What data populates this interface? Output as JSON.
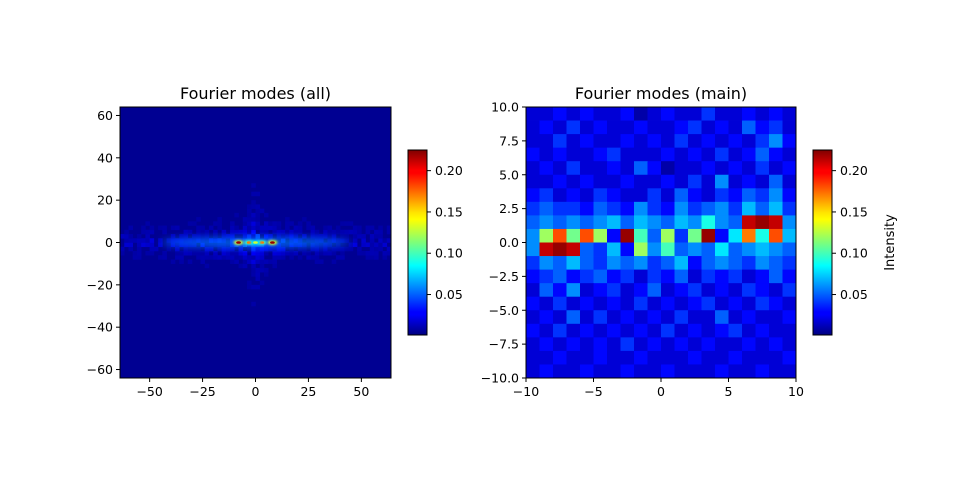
{
  "chart_data": [
    {
      "type": "heatmap",
      "title": "Fourier modes (all)",
      "xlabel": "",
      "ylabel": "",
      "xlim": [
        -64,
        64
      ],
      "ylim": [
        -64,
        64
      ],
      "xticks": [
        -50,
        -25,
        0,
        25,
        50
      ],
      "xtick_labels": [
        "−50",
        "−25",
        "0",
        "25",
        "50"
      ],
      "yticks": [
        -60,
        -40,
        -20,
        0,
        20,
        40,
        60
      ],
      "ytick_labels": [
        "−60",
        "−40",
        "−20",
        "0",
        "20",
        "40",
        "60"
      ],
      "colormap": "jet",
      "background_value": 0.005,
      "peaks": [
        {
          "x": -8,
          "y": 0,
          "value": 0.22
        },
        {
          "x": 8,
          "y": 0,
          "value": 0.22
        },
        {
          "x": -3,
          "y": 0,
          "value": 0.17
        },
        {
          "x": 3,
          "y": 0,
          "value": 0.17
        },
        {
          "x": 0,
          "y": 0,
          "value": 0.13
        }
      ],
      "colorbar": {
        "range": [
          0.001,
          0.225
        ],
        "ticks": [
          0.05,
          0.1,
          0.15,
          0.2
        ],
        "tick_labels": [
          "0.05",
          "0.10",
          "0.15",
          "0.20"
        ],
        "label": ""
      }
    },
    {
      "type": "heatmap",
      "title": "Fourier modes (main)",
      "xlabel": "",
      "ylabel": "",
      "xlim": [
        -10,
        10
      ],
      "ylim": [
        -10,
        10
      ],
      "xticks": [
        -10,
        -5,
        0,
        5,
        10
      ],
      "xtick_labels": [
        "−10",
        "−5",
        "0",
        "5",
        "10"
      ],
      "yticks": [
        -10,
        -7.5,
        -5,
        -2.5,
        0,
        2.5,
        5,
        7.5,
        10
      ],
      "ytick_labels": [
        "−10.0",
        "−7.5",
        "−5.0",
        "−2.5",
        "0.0",
        "2.5",
        "5.0",
        "7.5",
        "10.0"
      ],
      "colormap": "jet",
      "x_bins": [
        -10,
        -9,
        -8,
        -7,
        -6,
        -5,
        -4,
        -3,
        -2,
        -1,
        0,
        1,
        2,
        3,
        4,
        5,
        6,
        7,
        8,
        9
      ],
      "y_bins_top_to_bottom": [
        9,
        8,
        7,
        6,
        5,
        4,
        3,
        2,
        1,
        0,
        -1,
        -2,
        -3,
        -4,
        -5,
        -6,
        -7,
        -8,
        -9,
        -10
      ],
      "values": [
        [
          0.02,
          0.02,
          0.03,
          0.02,
          0.03,
          0.02,
          0.02,
          0.03,
          0.01,
          0.02,
          0.03,
          0.02,
          0.02,
          0.04,
          0.02,
          0.02,
          0.03,
          0.02,
          0.03,
          0.02
        ],
        [
          0.02,
          0.03,
          0.02,
          0.04,
          0.02,
          0.03,
          0.02,
          0.02,
          0.03,
          0.02,
          0.02,
          0.03,
          0.04,
          0.02,
          0.03,
          0.02,
          0.05,
          0.03,
          0.04,
          0.02
        ],
        [
          0.02,
          0.02,
          0.04,
          0.02,
          0.03,
          0.02,
          0.02,
          0.03,
          0.02,
          0.03,
          0.02,
          0.04,
          0.02,
          0.03,
          0.02,
          0.03,
          0.02,
          0.04,
          0.06,
          0.03
        ],
        [
          0.03,
          0.02,
          0.03,
          0.02,
          0.02,
          0.03,
          0.04,
          0.02,
          0.02,
          0.02,
          0.03,
          0.02,
          0.03,
          0.02,
          0.04,
          0.02,
          0.03,
          0.05,
          0.03,
          0.02
        ],
        [
          0.02,
          0.03,
          0.02,
          0.04,
          0.02,
          0.02,
          0.03,
          0.02,
          0.05,
          0.03,
          0.01,
          0.02,
          0.02,
          0.03,
          0.02,
          0.03,
          0.02,
          0.04,
          0.02,
          0.03
        ],
        [
          0.02,
          0.02,
          0.03,
          0.02,
          0.03,
          0.02,
          0.02,
          0.03,
          0.02,
          0.02,
          0.03,
          0.02,
          0.04,
          0.02,
          0.06,
          0.02,
          0.03,
          0.02,
          0.05,
          0.02
        ],
        [
          0.03,
          0.04,
          0.02,
          0.03,
          0.02,
          0.04,
          0.03,
          0.02,
          0.02,
          0.04,
          0.02,
          0.05,
          0.03,
          0.02,
          0.04,
          0.03,
          0.05,
          0.04,
          0.06,
          0.03
        ],
        [
          0.04,
          0.05,
          0.04,
          0.04,
          0.03,
          0.05,
          0.04,
          0.03,
          0.06,
          0.04,
          0.03,
          0.06,
          0.04,
          0.05,
          0.06,
          0.04,
          0.07,
          0.05,
          0.07,
          0.04
        ],
        [
          0.05,
          0.06,
          0.05,
          0.06,
          0.05,
          0.06,
          0.07,
          0.05,
          0.07,
          0.06,
          0.05,
          0.07,
          0.06,
          0.09,
          0.06,
          0.05,
          0.21,
          0.22,
          0.21,
          0.06
        ],
        [
          0.06,
          0.12,
          0.18,
          0.11,
          0.18,
          0.12,
          0.03,
          0.22,
          0.1,
          0.05,
          0.12,
          0.04,
          0.11,
          0.22,
          0.03,
          0.08,
          0.17,
          0.09,
          0.18,
          0.07
        ],
        [
          0.06,
          0.21,
          0.22,
          0.21,
          0.05,
          0.04,
          0.07,
          0.03,
          0.12,
          0.06,
          0.1,
          0.05,
          0.06,
          0.05,
          0.08,
          0.05,
          0.06,
          0.07,
          0.06,
          0.05
        ],
        [
          0.04,
          0.06,
          0.05,
          0.07,
          0.05,
          0.04,
          0.06,
          0.05,
          0.06,
          0.04,
          0.05,
          0.07,
          0.03,
          0.05,
          0.06,
          0.05,
          0.04,
          0.06,
          0.05,
          0.04
        ],
        [
          0.03,
          0.04,
          0.05,
          0.03,
          0.04,
          0.05,
          0.03,
          0.04,
          0.02,
          0.04,
          0.03,
          0.05,
          0.02,
          0.04,
          0.03,
          0.04,
          0.02,
          0.03,
          0.05,
          0.03
        ],
        [
          0.02,
          0.05,
          0.03,
          0.06,
          0.02,
          0.03,
          0.04,
          0.02,
          0.03,
          0.05,
          0.02,
          0.03,
          0.04,
          0.02,
          0.03,
          0.02,
          0.04,
          0.03,
          0.02,
          0.04
        ],
        [
          0.03,
          0.02,
          0.04,
          0.02,
          0.03,
          0.02,
          0.03,
          0.02,
          0.04,
          0.02,
          0.03,
          0.02,
          0.03,
          0.04,
          0.02,
          0.03,
          0.02,
          0.04,
          0.03,
          0.02
        ],
        [
          0.02,
          0.03,
          0.02,
          0.05,
          0.02,
          0.04,
          0.02,
          0.03,
          0.02,
          0.03,
          0.02,
          0.04,
          0.02,
          0.02,
          0.05,
          0.02,
          0.03,
          0.02,
          0.02,
          0.03
        ],
        [
          0.03,
          0.02,
          0.04,
          0.02,
          0.03,
          0.02,
          0.03,
          0.02,
          0.03,
          0.02,
          0.04,
          0.02,
          0.03,
          0.02,
          0.03,
          0.04,
          0.02,
          0.03,
          0.02,
          0.02
        ],
        [
          0.02,
          0.03,
          0.02,
          0.03,
          0.02,
          0.03,
          0.02,
          0.04,
          0.02,
          0.03,
          0.02,
          0.03,
          0.02,
          0.03,
          0.02,
          0.02,
          0.03,
          0.02,
          0.03,
          0.02
        ],
        [
          0.02,
          0.02,
          0.03,
          0.02,
          0.02,
          0.03,
          0.02,
          0.02,
          0.03,
          0.02,
          0.02,
          0.02,
          0.03,
          0.02,
          0.02,
          0.03,
          0.02,
          0.02,
          0.02,
          0.03
        ],
        [
          0.02,
          0.03,
          0.02,
          0.02,
          0.03,
          0.02,
          0.02,
          0.03,
          0.02,
          0.02,
          0.03,
          0.02,
          0.02,
          0.02,
          0.03,
          0.02,
          0.02,
          0.03,
          0.02,
          0.02
        ]
      ],
      "colorbar": {
        "range": [
          0.001,
          0.225
        ],
        "ticks": [
          0.05,
          0.1,
          0.15,
          0.2
        ],
        "tick_labels": [
          "0.05",
          "0.10",
          "0.15",
          "0.20"
        ],
        "label": "Intensity"
      }
    }
  ]
}
